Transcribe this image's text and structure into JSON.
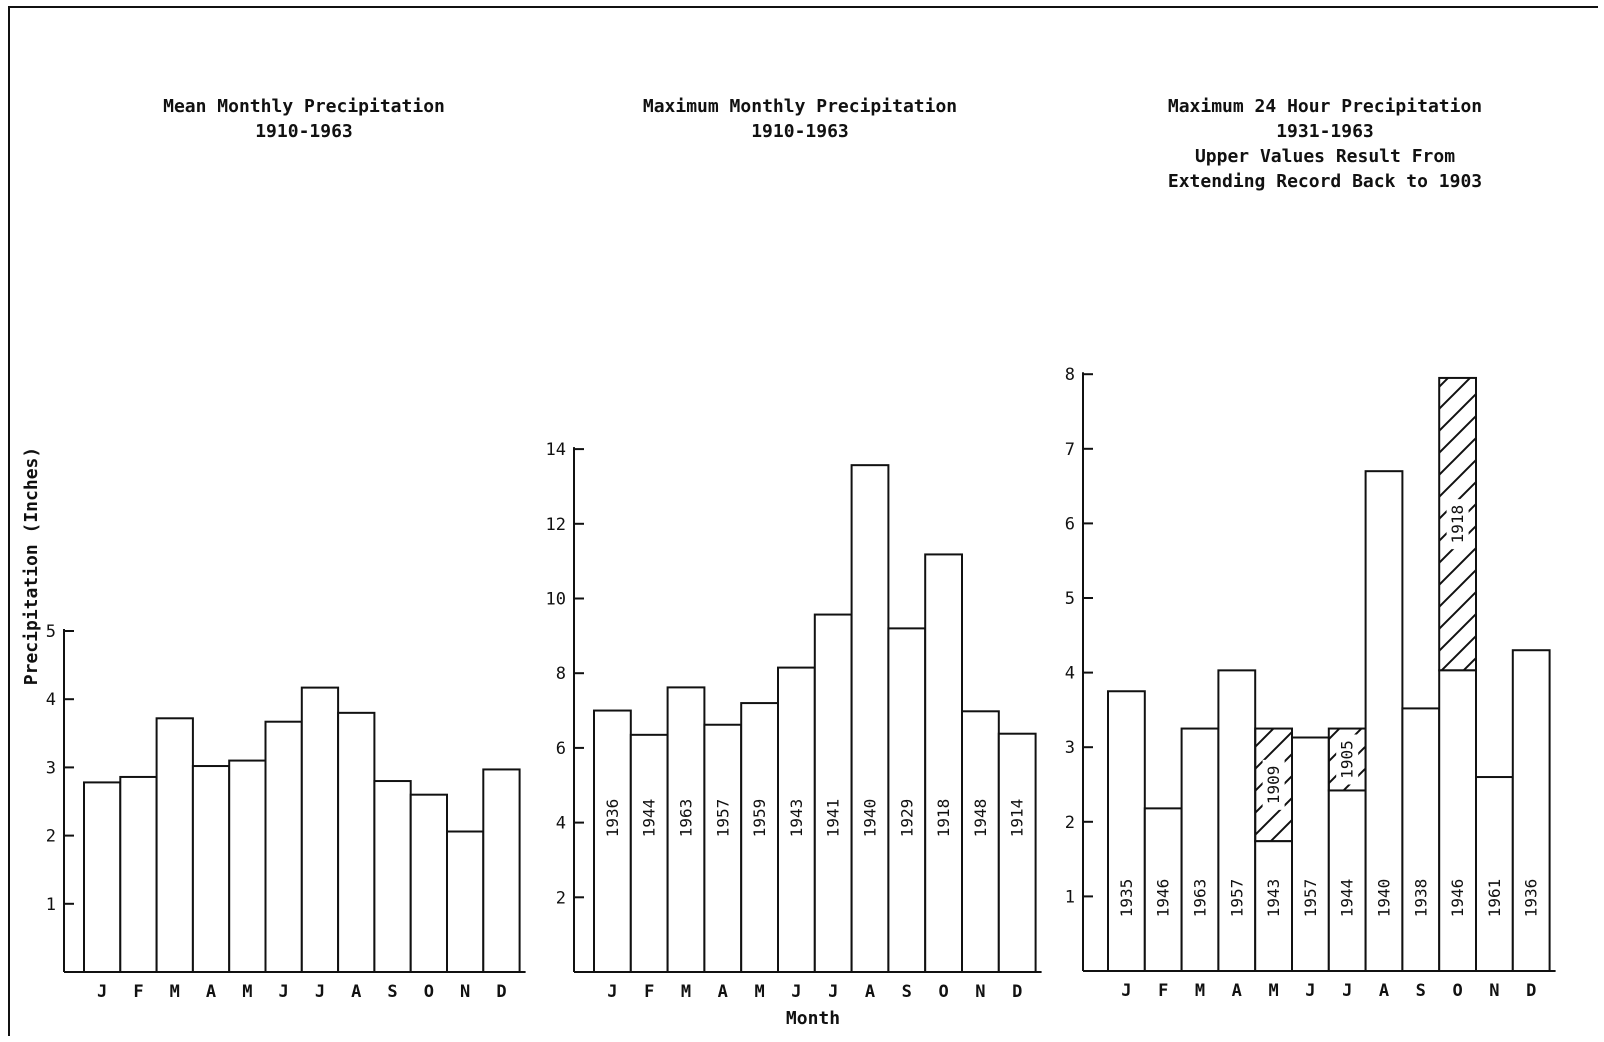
{
  "figure": {
    "ylabel": "Precipitation (Inches)",
    "xlabel": "Month"
  },
  "panels": [
    {
      "title": "Mean Monthly Precipitation",
      "subtitle": "1910-1963",
      "note1": "",
      "note2": ""
    },
    {
      "title": "Maximum Monthly Precipitation",
      "subtitle": "1910-1963",
      "note1": "",
      "note2": ""
    },
    {
      "title": "Maximum 24 Hour Precipitation",
      "subtitle": "1931-1963",
      "note1": "Upper Values Result From",
      "note2": "Extending Record Back to 1903"
    }
  ],
  "chart_data": [
    {
      "type": "bar",
      "title": "Mean Monthly Precipitation",
      "subtitle": "1910-1963",
      "ylabel": "Precipitation (Inches)",
      "xlabel": "",
      "categories": [
        "J",
        "F",
        "M",
        "A",
        "M",
        "J",
        "J",
        "A",
        "S",
        "O",
        "N",
        "D"
      ],
      "values": [
        2.78,
        2.86,
        3.72,
        3.02,
        3.1,
        3.67,
        4.17,
        3.8,
        2.8,
        2.6,
        2.06,
        2.97
      ],
      "ylim": [
        0,
        5
      ],
      "yticks": [
        1,
        2,
        3,
        4,
        5
      ],
      "grid": false
    },
    {
      "type": "bar",
      "title": "Maximum Monthly Precipitation",
      "subtitle": "1910-1963",
      "xlabel": "Month",
      "categories": [
        "J",
        "F",
        "M",
        "A",
        "M",
        "J",
        "J",
        "A",
        "S",
        "O",
        "N",
        "D"
      ],
      "values": [
        7.0,
        6.35,
        7.62,
        6.62,
        7.2,
        8.15,
        9.57,
        13.57,
        9.2,
        11.18,
        6.98,
        6.38
      ],
      "year_labels": [
        "1936",
        "1944",
        "1963",
        "1957",
        "1959",
        "1943",
        "1941",
        "1940",
        "1929",
        "1918",
        "1948",
        "1914"
      ],
      "ylim": [
        0,
        14
      ],
      "yticks": [
        2,
        4,
        6,
        8,
        10,
        12,
        14
      ],
      "grid": false
    },
    {
      "type": "bar",
      "title": "Maximum 24 Hour Precipitation",
      "subtitle": "1931-1963",
      "annotation": "Upper Values Result From Extending Record Back to 1903",
      "xlabel": "",
      "categories": [
        "J",
        "F",
        "M",
        "A",
        "M",
        "J",
        "J",
        "A",
        "S",
        "O",
        "N",
        "D"
      ],
      "values": [
        3.75,
        2.18,
        3.25,
        4.03,
        1.74,
        3.13,
        2.42,
        6.7,
        3.52,
        4.03,
        2.6,
        4.3
      ],
      "year_labels": [
        "1935",
        "1946",
        "1963",
        "1957",
        "1943",
        "1957",
        "1944",
        "1940",
        "1938",
        "1946",
        "1961",
        "1936"
      ],
      "extended_values": [
        null,
        null,
        null,
        null,
        3.25,
        null,
        3.25,
        null,
        null,
        7.95,
        null,
        null
      ],
      "extended_year_labels": [
        null,
        null,
        null,
        null,
        "1909",
        null,
        "1905",
        null,
        null,
        "1918",
        null,
        null
      ],
      "ylim": [
        0,
        8
      ],
      "yticks": [
        1,
        2,
        3,
        4,
        5,
        6,
        7,
        8
      ],
      "grid": false
    }
  ]
}
